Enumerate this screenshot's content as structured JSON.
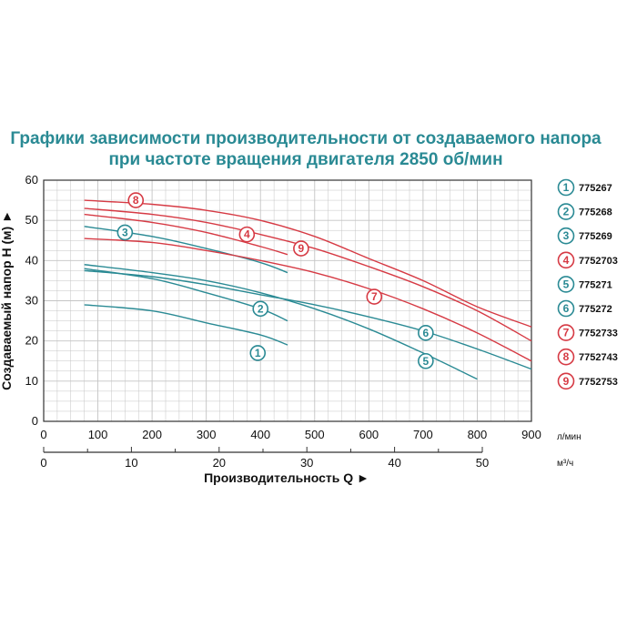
{
  "chart_data": {
    "type": "line",
    "title_lines": [
      "Графики зависимости производительности от создаваемого напора",
      "при частоте вращения двигателя 2850 об/мин"
    ],
    "ylabel": "Создаваемый напор H (м) ►",
    "xlabel": "Производительность Q ►",
    "x_unit": "л/мин",
    "x2_unit": "м³/ч",
    "xlim": [
      0,
      900
    ],
    "ylim": [
      0,
      60
    ],
    "x_ticks": [
      0,
      100,
      200,
      300,
      400,
      500,
      600,
      700,
      800,
      900
    ],
    "x_tick_labels": [
      "0",
      "100",
      "200",
      "300",
      "400",
      "500",
      "600",
      "700",
      "800",
      "900"
    ],
    "y_ticks": [
      0,
      10,
      20,
      30,
      40,
      50,
      60
    ],
    "y_tick_labels": [
      "0",
      "10",
      "20",
      "30",
      "40",
      "50",
      "60"
    ],
    "x2_ticks": [
      0,
      10,
      20,
      30,
      40,
      50
    ],
    "x2_tick_labels": [
      "0",
      "10",
      "20",
      "30",
      "40",
      "50"
    ],
    "grid": true,
    "legend_position": "right",
    "colors": {
      "teal": "#2a8a94",
      "red": "#d63a44",
      "grid": "#bdbdbd",
      "border": "#333333"
    },
    "series": [
      {
        "name": "775267",
        "marker": "1",
        "color": "#2a8a94",
        "x": [
          75,
          200,
          300,
          400,
          450
        ],
        "y": [
          29,
          27.5,
          24.5,
          21.5,
          19
        ],
        "marker_at": [
          395,
          17
        ]
      },
      {
        "name": "775268",
        "marker": "2",
        "color": "#2a8a94",
        "x": [
          75,
          200,
          300,
          400,
          450
        ],
        "y": [
          38,
          35.5,
          32,
          28,
          25
        ],
        "marker_at": [
          400,
          28
        ]
      },
      {
        "name": "775269",
        "marker": "3",
        "color": "#2a8a94",
        "x": [
          75,
          200,
          300,
          400,
          450
        ],
        "y": [
          48.5,
          46,
          43,
          39.5,
          37
        ],
        "marker_at": [
          150,
          47
        ]
      },
      {
        "name": "7752703",
        "marker": "4",
        "color": "#d63a44",
        "x": [
          75,
          200,
          300,
          400,
          450
        ],
        "y": [
          51.5,
          49.5,
          47,
          43.5,
          41.5
        ],
        "marker_at": [
          375,
          46.5
        ]
      },
      {
        "name": "775271",
        "marker": "5",
        "color": "#2a8a94",
        "x": [
          75,
          200,
          300,
          400,
          500,
          600,
          700,
          800
        ],
        "y": [
          39,
          37,
          35,
          32,
          28,
          23,
          17,
          10.5
        ],
        "marker_at": [
          705,
          15
        ]
      },
      {
        "name": "775272",
        "marker": "6",
        "color": "#2a8a94",
        "x": [
          75,
          200,
          300,
          400,
          500,
          600,
          700,
          800,
          900
        ],
        "y": [
          37.5,
          36,
          34,
          31.5,
          29,
          26,
          22.5,
          18,
          13
        ],
        "marker_at": [
          705,
          22
        ]
      },
      {
        "name": "7752733",
        "marker": "7",
        "color": "#d63a44",
        "x": [
          75,
          200,
          300,
          400,
          500,
          600,
          700,
          800,
          900
        ],
        "y": [
          45.5,
          44.5,
          42.5,
          40,
          37,
          33,
          28,
          22,
          15
        ],
        "marker_at": [
          610,
          31
        ]
      },
      {
        "name": "7752743",
        "marker": "8",
        "color": "#d63a44",
        "x": [
          75,
          200,
          300,
          400,
          500,
          600,
          700,
          800,
          900
        ],
        "y": [
          55,
          54,
          52.5,
          50,
          46,
          40.5,
          35,
          28.5,
          23.5
        ],
        "marker_at": [
          170,
          55
        ]
      },
      {
        "name": "7752753",
        "marker": "9",
        "color": "#d63a44",
        "x": [
          75,
          200,
          300,
          400,
          500,
          600,
          700,
          800,
          900
        ],
        "y": [
          53,
          51.5,
          49.5,
          46.5,
          43,
          38.5,
          33.5,
          27.5,
          20
        ],
        "marker_at": [
          475,
          43
        ]
      }
    ],
    "legend": [
      {
        "marker": "1",
        "label": "775267",
        "color": "#2a8a94"
      },
      {
        "marker": "2",
        "label": "775268",
        "color": "#2a8a94"
      },
      {
        "marker": "3",
        "label": "775269",
        "color": "#2a8a94"
      },
      {
        "marker": "4",
        "label": "7752703",
        "color": "#d63a44"
      },
      {
        "marker": "5",
        "label": "775271",
        "color": "#2a8a94"
      },
      {
        "marker": "6",
        "label": "775272",
        "color": "#2a8a94"
      },
      {
        "marker": "7",
        "label": "7752733",
        "color": "#d63a44"
      },
      {
        "marker": "8",
        "label": "7752743",
        "color": "#d63a44"
      },
      {
        "marker": "9",
        "label": "7752753",
        "color": "#d63a44"
      }
    ]
  }
}
